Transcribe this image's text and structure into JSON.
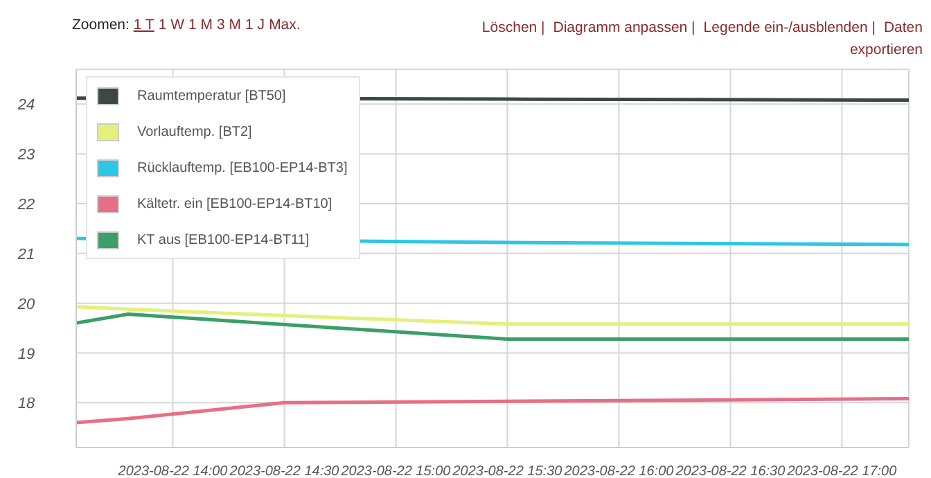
{
  "chart_data": {
    "type": "line",
    "annotations": [
      "Zoomen:",
      "1 T",
      "1 W",
      "1 M",
      "3 M",
      "1 J",
      "Max.",
      "Löschen |",
      "Diagramm anpassen |",
      "Legende ein-/ausblenden |",
      "Daten exportieren"
    ],
    "x": [
      "2023-08-22T13:34",
      "2023-08-22T13:48",
      "2023-08-22T14:30",
      "2023-08-22T15:30",
      "2023-08-22T17:18"
    ],
    "series": [
      {
        "name": "Raumtemperatur [BT50]",
        "color": "#3d4747",
        "values": [
          24.12,
          null,
          null,
          24.1,
          24.08
        ]
      },
      {
        "name": "Vorlauftemp. [BT2]",
        "color": "#e4f07a",
        "values": [
          19.93,
          19.88,
          19.75,
          19.58,
          19.58
        ]
      },
      {
        "name": "Rücklauftemp. [EB100-EP14-BT3]",
        "color": "#2ec6e6",
        "values": [
          21.3,
          null,
          null,
          21.22,
          21.18
        ]
      },
      {
        "name": "Kältetr. ein [EB100-EP14-BT10]",
        "color": "#e86e88",
        "values": [
          17.6,
          17.68,
          18.0,
          18.03,
          18.08
        ]
      },
      {
        "name": "KT aus [EB100-EP14-BT11]",
        "color": "#3a9f68",
        "values": [
          19.6,
          19.78,
          19.57,
          19.28,
          19.28
        ]
      }
    ],
    "xlim": [
      "2023-08-22T13:34",
      "2023-08-22T17:18"
    ],
    "xticks": [
      {
        "value": "2023-08-22T14:00",
        "label": "2023-08-22 14:00"
      },
      {
        "value": "2023-08-22T14:30",
        "label": "2023-08-22 14:30"
      },
      {
        "value": "2023-08-22T15:00",
        "label": "2023-08-22 15:00"
      },
      {
        "value": "2023-08-22T15:30",
        "label": "2023-08-22 15:30"
      },
      {
        "value": "2023-08-22T16:00",
        "label": "2023-08-22 16:00"
      },
      {
        "value": "2023-08-22T16:30",
        "label": "2023-08-22 16:30"
      },
      {
        "value": "2023-08-22T17:00",
        "label": "2023-08-22 17:00"
      }
    ],
    "ylim": [
      17.1,
      24.7
    ],
    "yticks": [
      18,
      19,
      20,
      21,
      22,
      23,
      24
    ],
    "grid": true,
    "legend": "top left",
    "marker": "none",
    "line_style": "solid"
  }
}
